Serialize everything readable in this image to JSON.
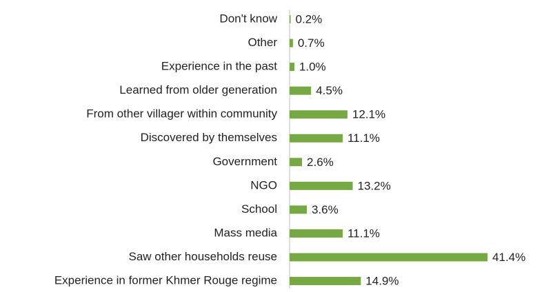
{
  "chart_data": {
    "type": "barh",
    "categories": [
      "Don't know",
      "Other",
      "Experience in the past",
      "Learned from older generation",
      "From other villager within community",
      "Discovered by themselves",
      "Government",
      "NGO",
      "School",
      "Mass media",
      "Saw other households reuse",
      "Experience in former Khmer Rouge regime"
    ],
    "values": [
      0.2,
      0.7,
      1.0,
      4.5,
      12.1,
      11.1,
      2.6,
      13.2,
      3.6,
      11.1,
      41.4,
      14.9
    ],
    "value_labels": [
      "0.2%",
      "0.7%",
      "1.0%",
      "4.5%",
      "12.1%",
      "11.1%",
      "2.6%",
      "13.2%",
      "3.6%",
      "11.1%",
      "41.4%",
      "14.9%"
    ],
    "color": "#76a844",
    "xlim": [
      0,
      45
    ]
  }
}
